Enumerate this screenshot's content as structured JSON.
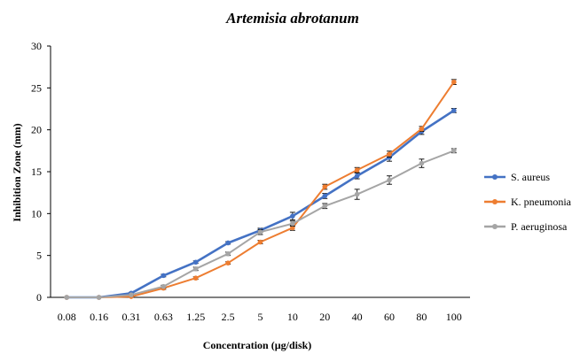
{
  "chart_data": {
    "type": "line",
    "title": "Artemisia abrotanum",
    "xlabel": "Concentration (µg/disk)",
    "ylabel": "Inhibition Zone (mm)",
    "categories": [
      "0.08",
      "0.16",
      "0.31",
      "0.63",
      "1.25",
      "2.5",
      "5",
      "10",
      "20",
      "40",
      "60",
      "80",
      "100"
    ],
    "ylim": [
      0,
      30
    ],
    "yticks": [
      "0",
      "5",
      "10",
      "15",
      "20",
      "25",
      "30"
    ],
    "grid": false,
    "legend_position": "right",
    "series": [
      {
        "name": "S. aureus",
        "color": "#4472C4",
        "values": [
          0,
          0,
          0.5,
          2.6,
          4.2,
          6.5,
          8.0,
          9.7,
          12.1,
          14.5,
          16.7,
          19.8,
          22.3
        ],
        "errors": [
          0,
          0,
          0.1,
          0.15,
          0.15,
          0.15,
          0.25,
          0.45,
          0.3,
          0.35,
          0.45,
          0.35,
          0.25
        ]
      },
      {
        "name": "K. pneumonia",
        "color": "#ED7D31",
        "values": [
          0,
          0,
          0.1,
          1.1,
          2.3,
          4.1,
          6.6,
          8.3,
          13.2,
          15.2,
          17.1,
          20.1,
          25.7
        ],
        "errors": [
          0,
          0,
          0.05,
          0.15,
          0.15,
          0.15,
          0.2,
          0.3,
          0.3,
          0.3,
          0.35,
          0.3,
          0.3
        ]
      },
      {
        "name": "P. aeruginosa",
        "color": "#A5A5A5",
        "values": [
          0,
          0,
          0.3,
          1.3,
          3.4,
          5.2,
          7.8,
          8.8,
          10.9,
          12.3,
          14.0,
          16.0,
          17.5
        ],
        "errors": [
          0,
          0,
          0.05,
          0.15,
          0.2,
          0.2,
          0.3,
          0.3,
          0.3,
          0.6,
          0.5,
          0.5,
          0.25
        ]
      }
    ]
  }
}
